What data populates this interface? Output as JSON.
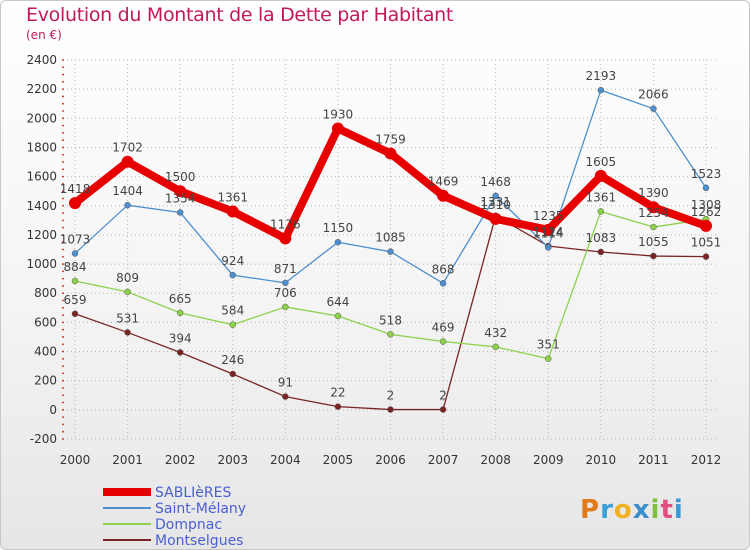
{
  "header": {
    "title": "Evolution du Montant de la Dette par Habitant",
    "subtitle": "(en €)"
  },
  "logo": {
    "text": "Proxiti"
  },
  "colors": {
    "title": "#c2185b",
    "legend_text": "#4a5fd0",
    "grid": "#b8b8b8",
    "axis_dots": "#d01010"
  },
  "chart_data": {
    "type": "line",
    "title": "Evolution du Montant de la Dette par Habitant",
    "subtitle": "(en €)",
    "xlabel": "",
    "ylabel": "",
    "ylim": [
      -200,
      2400
    ],
    "yticks": [
      -200,
      0,
      200,
      400,
      600,
      800,
      1000,
      1200,
      1400,
      1600,
      1800,
      2000,
      2200,
      2400
    ],
    "grid": "horizontal dotted",
    "legend_position": "bottom-left",
    "categories": [
      "2000",
      "2001",
      "2002",
      "2003",
      "2004",
      "2005",
      "2006",
      "2007",
      "2008",
      "2009",
      "2010",
      "2011",
      "2012"
    ],
    "series": [
      {
        "name": "SABLIèRES",
        "color": "#e60000",
        "values": [
          1418,
          1702,
          1500,
          1361,
          1176,
          1930,
          1759,
          1469,
          1310,
          1235,
          1605,
          1390,
          1262
        ]
      },
      {
        "name": "Saint-Mélany",
        "color": "#4d8fcf",
        "values": [
          1073,
          1404,
          1354,
          924,
          871,
          1150,
          1085,
          868,
          1468,
          1114,
          2193,
          2066,
          1523
        ]
      },
      {
        "name": "Dompnac",
        "color": "#8dd14a",
        "values": [
          884,
          809,
          665,
          584,
          706,
          644,
          518,
          469,
          432,
          351,
          1361,
          1254,
          1308
        ]
      },
      {
        "name": "Montselgues",
        "color": "#7a2525",
        "values": [
          659,
          531,
          394,
          246,
          91,
          22,
          2,
          2,
          1331,
          1124,
          1083,
          1055,
          1051
        ]
      }
    ]
  }
}
